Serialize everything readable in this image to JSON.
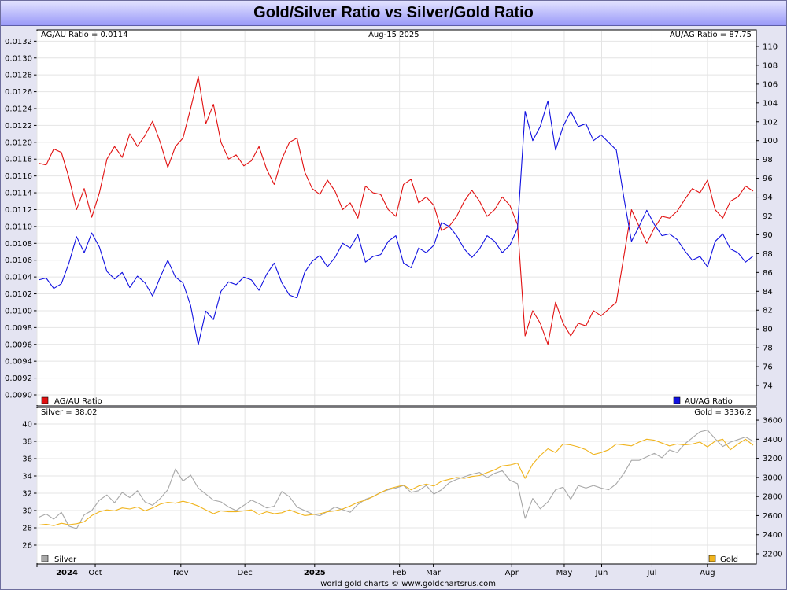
{
  "title": "Gold/Silver Ratio vs Silver/Gold Ratio",
  "footer": "world gold charts © www.goldchartsrus.com",
  "chart_data": [
    {
      "type": "line",
      "date_label": "Aug-15  2025",
      "left_readout": "AG/AU Ratio = 0.0114",
      "right_readout": "AU/AG Ratio = 87.75",
      "left_axis": {
        "ylim": [
          0.009,
          0.01325
        ],
        "ticks": [
          "0.0090",
          "0.0092",
          "0.0094",
          "0.0096",
          "0.0098",
          "0.0100",
          "0.0102",
          "0.0104",
          "0.0106",
          "0.0108",
          "0.0110",
          "0.0112",
          "0.0114",
          "0.0116",
          "0.0118",
          "0.0120",
          "0.0122",
          "0.0124",
          "0.0126",
          "0.0128",
          "0.0130",
          "0.0132"
        ]
      },
      "right_axis": {
        "ylim": [
          73,
          111
        ],
        "ticks": [
          "74",
          "76",
          "78",
          "80",
          "82",
          "84",
          "86",
          "88",
          "90",
          "92",
          "94",
          "96",
          "98",
          "100",
          "102",
          "104",
          "106",
          "108",
          "110"
        ]
      },
      "grid": true,
      "series": [
        {
          "name": "AG/AU Ratio",
          "axis": "left",
          "color": "#e11010",
          "values": [
            0.01175,
            0.01173,
            0.01192,
            0.01188,
            0.01158,
            0.0112,
            0.01145,
            0.01111,
            0.0114,
            0.0118,
            0.01195,
            0.01182,
            0.0121,
            0.01195,
            0.01208,
            0.01225,
            0.012,
            0.0117,
            0.01195,
            0.01205,
            0.0124,
            0.01278,
            0.01222,
            0.01245,
            0.012,
            0.0118,
            0.01185,
            0.01172,
            0.01178,
            0.01195,
            0.01168,
            0.0115,
            0.0118,
            0.012,
            0.01205,
            0.01165,
            0.01145,
            0.01138,
            0.01155,
            0.01142,
            0.0112,
            0.01128,
            0.0111,
            0.01148,
            0.0114,
            0.01138,
            0.0112,
            0.01112,
            0.0115,
            0.01156,
            0.01128,
            0.01135,
            0.01125,
            0.01095,
            0.011,
            0.01112,
            0.0113,
            0.01143,
            0.0113,
            0.01112,
            0.0112,
            0.01135,
            0.01125,
            0.01102,
            0.0097,
            0.01,
            0.00985,
            0.0096,
            0.0101,
            0.00985,
            0.0097,
            0.00985,
            0.00982,
            0.01,
            0.00994,
            0.01002,
            0.0101,
            0.01065,
            0.0112,
            0.011,
            0.0108,
            0.01098,
            0.01112,
            0.0111,
            0.01118,
            0.01132,
            0.01145,
            0.0114,
            0.01155,
            0.0112,
            0.0111,
            0.0113,
            0.01135,
            0.01148,
            0.01142
          ]
        },
        {
          "name": "AU/AG Ratio",
          "axis": "right",
          "color": "#1010e0",
          "values": [
            85.2,
            85.4,
            84.3,
            84.8,
            87.0,
            89.8,
            88.1,
            90.2,
            88.7,
            86.1,
            85.3,
            86.0,
            84.4,
            85.6,
            84.9,
            83.5,
            85.5,
            87.3,
            85.5,
            84.9,
            82.5,
            78.3,
            81.9,
            81.0,
            84.0,
            85.0,
            84.7,
            85.5,
            85.2,
            84.1,
            85.8,
            87.0,
            84.9,
            83.6,
            83.3,
            86.0,
            87.2,
            87.8,
            86.6,
            87.6,
            89.1,
            88.6,
            90.0,
            87.1,
            87.7,
            87.9,
            89.3,
            89.9,
            87.0,
            86.5,
            88.6,
            88.1,
            88.9,
            91.3,
            90.9,
            89.9,
            88.5,
            87.6,
            88.5,
            89.9,
            89.3,
            88.1,
            88.9,
            90.7,
            103.1,
            100.0,
            101.5,
            104.2,
            99.0,
            101.5,
            103.1,
            101.5,
            101.8,
            100.0,
            100.6,
            99.8,
            99.0,
            93.9,
            89.3,
            90.9,
            92.6,
            91.1,
            89.9,
            90.1,
            89.5,
            88.3,
            87.3,
            87.7,
            86.6,
            89.3,
            90.1,
            88.5,
            88.1,
            87.1,
            87.75
          ]
        }
      ]
    },
    {
      "type": "line",
      "left_readout": "Silver = 38.02",
      "right_readout": "Gold = 3336.2",
      "left_axis": {
        "ylim": [
          25,
          41
        ],
        "ticks": [
          "26",
          "28",
          "30",
          "32",
          "34",
          "36",
          "38",
          "40"
        ]
      },
      "right_axis": {
        "ylim": [
          2200,
          3650
        ],
        "ticks": [
          "2200",
          "2400",
          "2600",
          "2800",
          "3000",
          "3200",
          "3400",
          "3600"
        ]
      },
      "grid": true,
      "series": [
        {
          "name": "Silver",
          "axis": "left",
          "color": "#a8a8a8",
          "values": [
            29.2,
            29.6,
            29.0,
            29.8,
            28.2,
            27.9,
            29.5,
            30.0,
            31.2,
            31.8,
            30.9,
            32.1,
            31.5,
            32.3,
            31.0,
            30.6,
            31.4,
            32.4,
            34.8,
            33.4,
            34.1,
            32.6,
            31.9,
            31.2,
            31.0,
            30.4,
            30.0,
            30.6,
            31.2,
            30.8,
            30.3,
            30.5,
            32.2,
            31.6,
            30.4,
            30.0,
            29.6,
            29.4,
            29.9,
            30.4,
            30.1,
            29.8,
            30.7,
            31.3,
            31.6,
            32.1,
            32.4,
            32.6,
            32.9,
            32.1,
            32.3,
            32.9,
            31.9,
            32.4,
            33.2,
            33.6,
            33.9,
            34.2,
            34.4,
            33.8,
            34.3,
            34.6,
            33.5,
            33.1,
            29.1,
            31.4,
            30.2,
            31.0,
            32.4,
            32.7,
            31.3,
            32.9,
            32.6,
            32.9,
            32.6,
            32.4,
            33.1,
            34.3,
            35.8,
            35.8,
            36.2,
            36.6,
            36.1,
            37.0,
            36.7,
            37.7,
            38.4,
            39.1,
            39.3,
            38.3,
            37.4,
            37.9,
            38.2,
            38.5,
            38.02
          ]
        },
        {
          "name": "Gold",
          "axis": "right",
          "color": "#f0b41e",
          "values": [
            2500,
            2510,
            2495,
            2520,
            2505,
            2515,
            2535,
            2600,
            2640,
            2660,
            2650,
            2680,
            2670,
            2690,
            2650,
            2680,
            2720,
            2740,
            2730,
            2750,
            2730,
            2700,
            2660,
            2620,
            2650,
            2640,
            2640,
            2650,
            2660,
            2610,
            2640,
            2620,
            2630,
            2660,
            2630,
            2600,
            2610,
            2620,
            2640,
            2650,
            2670,
            2700,
            2740,
            2760,
            2800,
            2840,
            2880,
            2900,
            2920,
            2870,
            2910,
            2930,
            2910,
            2960,
            2980,
            3000,
            2990,
            3010,
            3020,
            3050,
            3080,
            3120,
            3130,
            3150,
            2990,
            3140,
            3230,
            3300,
            3260,
            3350,
            3340,
            3320,
            3290,
            3240,
            3260,
            3290,
            3350,
            3340,
            3330,
            3370,
            3400,
            3390,
            3360,
            3330,
            3350,
            3340,
            3350,
            3370,
            3320,
            3380,
            3400,
            3290,
            3350,
            3400,
            3336.2
          ]
        }
      ]
    }
  ],
  "x_axis": {
    "labels": [
      "2024",
      "Oct",
      "Nov",
      "Dec",
      "2025",
      "Feb",
      "Mar",
      "Apr",
      "May",
      "Jun",
      "Jul",
      "Aug"
    ],
    "bold": [
      true,
      false,
      false,
      false,
      true,
      false,
      false,
      false,
      false,
      false,
      false,
      false
    ],
    "positions": [
      0.0,
      0.081,
      0.2,
      0.289,
      0.386,
      0.504,
      0.551,
      0.66,
      0.733,
      0.785,
      0.855,
      0.932
    ]
  }
}
